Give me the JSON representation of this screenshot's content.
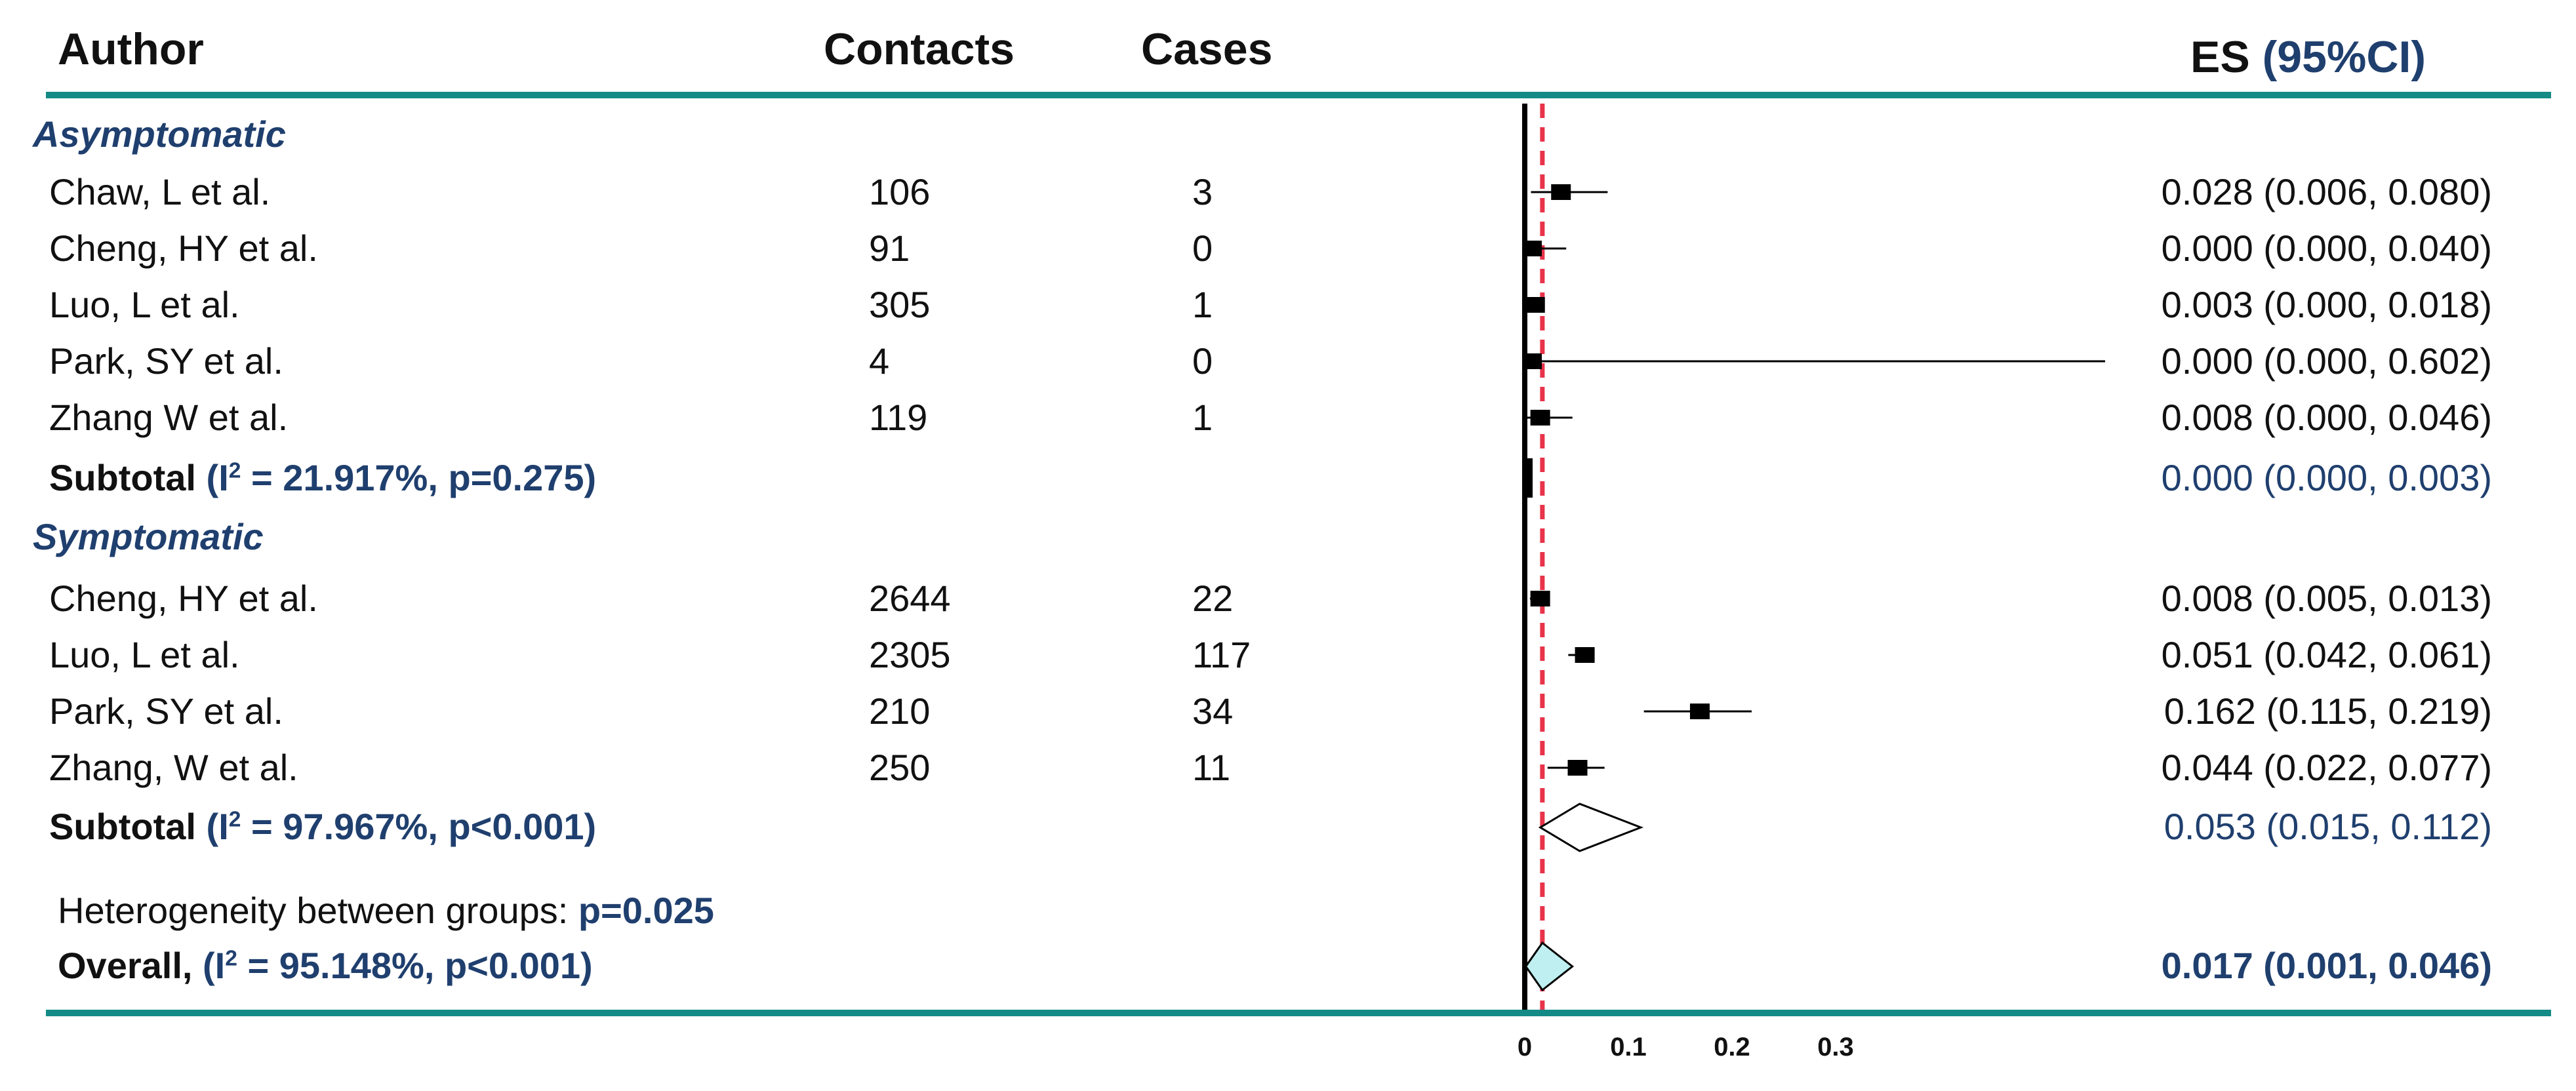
{
  "colors": {
    "rule": "#138a86",
    "blue": "#1f3f6e",
    "null_line": "#e8334a",
    "overall_fill": "#bfeff0"
  },
  "headers": {
    "author": "Author",
    "contacts": "Contacts",
    "cases": "Cases",
    "es": "ES",
    "ci": "(95%CI)"
  },
  "groups": [
    {
      "label": "Asymptomatic",
      "studies": [
        {
          "author": "Chaw, L et al.",
          "contacts": "106",
          "cases": "3",
          "es_text": "0.028 (0.006, 0.080)"
        },
        {
          "author": "Cheng, HY et al.",
          "contacts": "91",
          "cases": "0",
          "es_text": "0.000 (0.000, 0.040)"
        },
        {
          "author": "Luo, L et al.",
          "contacts": "305",
          "cases": "1",
          "es_text": "0.003 (0.000, 0.018)"
        },
        {
          "author": "Park, SY et al.",
          "contacts": "4",
          "cases": "0",
          "es_text": "0.000 (0.000, 0.602)"
        },
        {
          "author": "Zhang W et al.",
          "contacts": "119",
          "cases": "1",
          "es_text": "0.008 (0.000, 0.046)"
        }
      ],
      "subtotal": {
        "label": "Subtotal",
        "i2_pre": "(I",
        "i2_sup": "2",
        "i2_post": " = 21.917%, p=0.275)",
        "es_text": "0.000 (0.000, 0.003)"
      }
    },
    {
      "label": "Symptomatic",
      "studies": [
        {
          "author": "Cheng, HY et al.",
          "contacts": "2644",
          "cases": "22",
          "es_text": "0.008 (0.005, 0.013)"
        },
        {
          "author": "Luo, L et al.",
          "contacts": "2305",
          "cases": "117",
          "es_text": "0.051 (0.042, 0.061)"
        },
        {
          "author": "Park, SY et al.",
          "contacts": "210",
          "cases": "34",
          "es_text": "0.162 (0.115, 0.219)"
        },
        {
          "author": "Zhang, W et al.",
          "contacts": "250",
          "cases": "11",
          "es_text": "0.044 (0.022, 0.077)"
        }
      ],
      "subtotal": {
        "label": "Subtotal",
        "i2_pre": "(I",
        "i2_sup": "2",
        "i2_post": " = 97.967%, p<0.001)",
        "es_text": "0.053 (0.015, 0.112)"
      }
    }
  ],
  "heterogeneity": {
    "label": "Heterogeneity between groups: ",
    "p": "p=0.025"
  },
  "overall": {
    "label": "Overall, ",
    "i2_pre": "(I",
    "i2_sup": "2",
    "i2_post": " = 95.148%, p<0.001)",
    "es_text": "0.017 (0.001, 0.046)"
  },
  "chart_data": {
    "type": "forest",
    "xlim": [
      0,
      0.32
    ],
    "null_line": 0,
    "reference_line": 0.017,
    "x_ticks": [
      "0",
      "0.1",
      "0.2",
      "0.3"
    ],
    "x_tick_values": [
      0,
      0.1,
      0.2,
      0.3
    ],
    "rows": [
      {
        "kind": "study",
        "es": 0.028,
        "lo": 0.006,
        "hi": 0.08
      },
      {
        "kind": "study",
        "es": 0.0,
        "lo": 0.0,
        "hi": 0.04
      },
      {
        "kind": "study",
        "es": 0.003,
        "lo": 0.0,
        "hi": 0.018
      },
      {
        "kind": "study",
        "es": 0.0,
        "lo": 0.0,
        "hi": 0.602
      },
      {
        "kind": "study",
        "es": 0.008,
        "lo": 0.0,
        "hi": 0.046
      },
      {
        "kind": "subtotal",
        "es": 0.0,
        "lo": 0.0,
        "hi": 0.003
      },
      {
        "kind": "study",
        "es": 0.008,
        "lo": 0.005,
        "hi": 0.013
      },
      {
        "kind": "study",
        "es": 0.051,
        "lo": 0.042,
        "hi": 0.061
      },
      {
        "kind": "study",
        "es": 0.162,
        "lo": 0.115,
        "hi": 0.219
      },
      {
        "kind": "study",
        "es": 0.044,
        "lo": 0.022,
        "hi": 0.077
      },
      {
        "kind": "subtotal",
        "es": 0.053,
        "lo": 0.015,
        "hi": 0.112
      },
      {
        "kind": "overall",
        "es": 0.017,
        "lo": 0.001,
        "hi": 0.046
      }
    ]
  }
}
